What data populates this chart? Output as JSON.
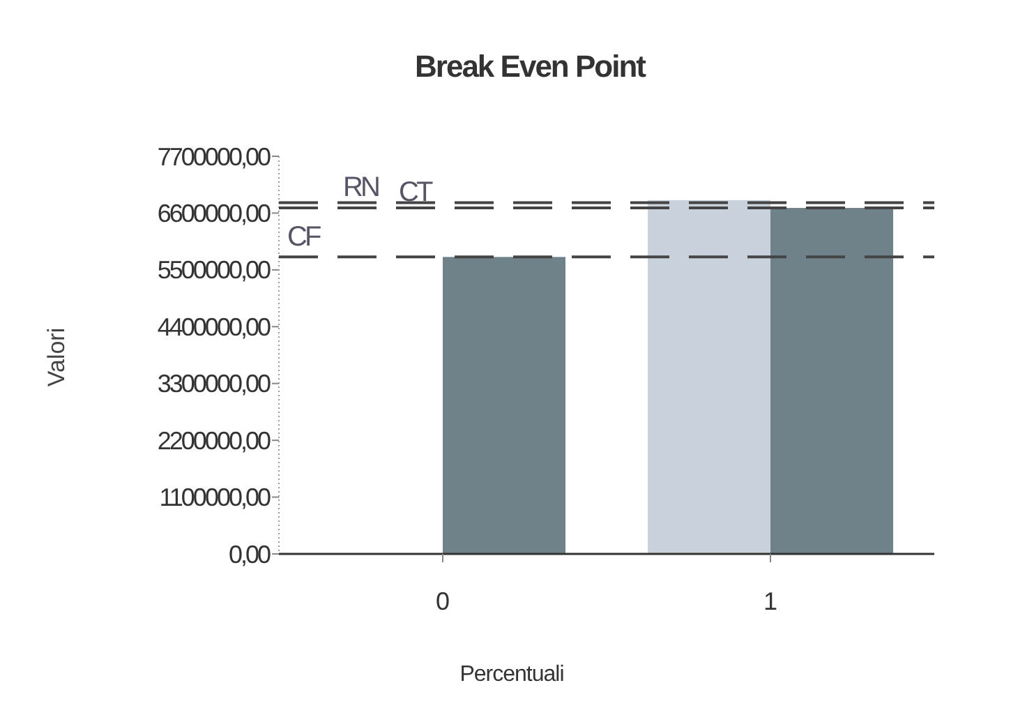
{
  "chart_data": {
    "type": "bar",
    "title": "Break Even Point",
    "xlabel": "Percentuali",
    "ylabel": "Valori",
    "categories": [
      "0",
      "1"
    ],
    "series": [
      {
        "color": "#c9d2dc",
        "values": [
          null,
          6850000
        ]
      },
      {
        "color": "#6f8189",
        "values": [
          5750000,
          6700000
        ]
      }
    ],
    "ylim": [
      0,
      7700000
    ],
    "yticks": [
      {
        "value": 0,
        "label": "0,00"
      },
      {
        "value": 1100000,
        "label": "1100000,00"
      },
      {
        "value": 2200000,
        "label": "2200000,00"
      },
      {
        "value": 3300000,
        "label": "3300000,00"
      },
      {
        "value": 4400000,
        "label": "4400000,00"
      },
      {
        "value": 5500000,
        "label": "5500000,00"
      },
      {
        "value": 6600000,
        "label": "6600000,00"
      },
      {
        "value": 7700000,
        "label": "7700000,00"
      }
    ],
    "ref_lines": [
      {
        "axis": "y",
        "value": 6800000,
        "label": "RN",
        "color": "#444444",
        "line_style": "dashed"
      },
      {
        "axis": "y",
        "value": 6700000,
        "label": "CT",
        "color": "#444444",
        "line_style": "dashed"
      },
      {
        "axis": "y",
        "value": 5750000,
        "label": "CF",
        "color": "#444444",
        "line_style": "dashed"
      }
    ],
    "grid": false
  }
}
